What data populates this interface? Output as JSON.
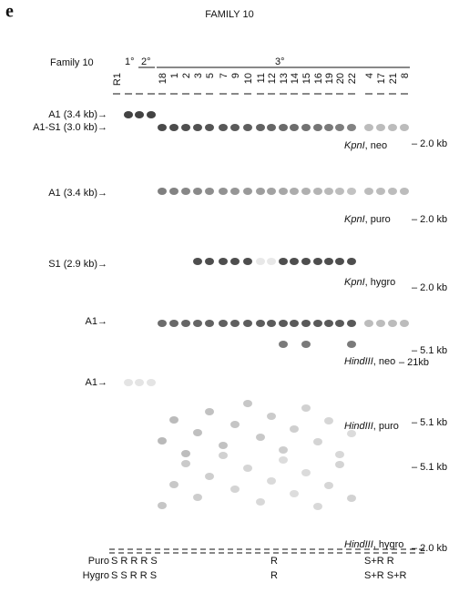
{
  "header": {
    "panel": "e",
    "title": "FAMILY 10"
  },
  "lanes": {
    "family": "Family 10",
    "generations": [
      "1°",
      "2°",
      "3°"
    ],
    "labels": [
      "R1",
      "18",
      "1",
      "2",
      "3",
      "5",
      "7",
      "9",
      "10",
      "11",
      "12",
      "13",
      "14",
      "15",
      "16",
      "19",
      "20",
      "22",
      "4",
      "17",
      "21",
      "8"
    ]
  },
  "blots": [
    {
      "left_labels": [
        "A1 (3.4 kb)→",
        "A1-S1 (3.0 kb)→"
      ],
      "enzyme": "KpnI",
      "probe": ", neo",
      "markers": [
        "– 2.0 kb"
      ]
    },
    {
      "left_labels": [
        "A1 (3.4 kb)→"
      ],
      "enzyme": "KpnI",
      "probe": ", puro",
      "markers": [
        "– 2.0 kb"
      ]
    },
    {
      "left_labels": [
        "S1 (2.9 kb)→"
      ],
      "enzyme": "KpnI",
      "probe": ", hygro",
      "markers": [
        "– 2.0 kb"
      ]
    },
    {
      "left_labels": [
        "A1→"
      ],
      "enzyme": "HindIII",
      "probe": ", neo",
      "markers": [
        "– 5.1 kb",
        "– 21kb"
      ]
    },
    {
      "left_labels": [
        "A1→"
      ],
      "enzyme": "HindIII",
      "probe": ", puro",
      "markers": [
        "– 5.1 kb"
      ]
    },
    {
      "left_labels": [],
      "enzyme": "HindIII",
      "probe": ", hygro",
      "markers": [
        "– 5.1 kb",
        "– 2.0 kb"
      ]
    }
  ],
  "summary": {
    "rows": [
      {
        "label": "Puro",
        "left": "S R R R S",
        "middle": "R",
        "right": "S+R R"
      },
      {
        "label": "Hygro",
        "left": "S S R R S",
        "middle": "R",
        "right": "S+R S+R"
      }
    ]
  }
}
